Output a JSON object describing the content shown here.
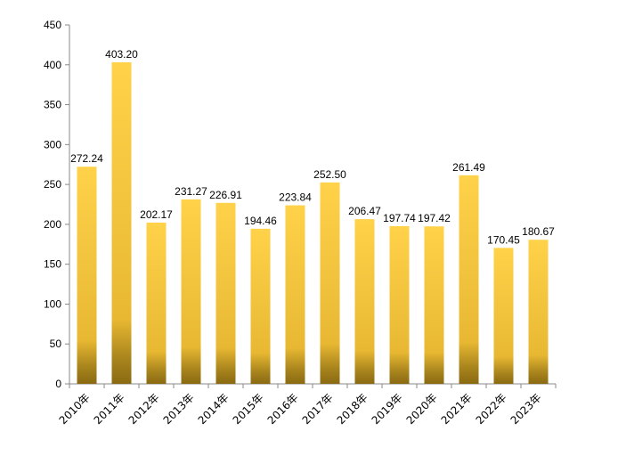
{
  "chart_data": {
    "type": "bar",
    "categories": [
      "2010年",
      "2011年",
      "2012年",
      "2013年",
      "2014年",
      "2015年",
      "2016年",
      "2017年",
      "2018年",
      "2019年",
      "2020年",
      "2021年",
      "2022年",
      "2023年"
    ],
    "values": [
      272.24,
      403.2,
      202.17,
      231.27,
      226.91,
      194.46,
      223.84,
      252.5,
      206.47,
      197.74,
      197.42,
      261.49,
      170.45,
      180.67
    ],
    "data_labels": [
      "272.24",
      "403.20",
      "202.17",
      "231.27",
      "226.91",
      "194.46",
      "223.84",
      "252.50",
      "206.47",
      "197.74",
      "197.42",
      "261.49",
      "170.45",
      "180.67"
    ],
    "ylim": [
      0,
      450
    ],
    "yticks": [
      "0",
      "50",
      "100",
      "150",
      "200",
      "250",
      "300",
      "350",
      "400",
      "450"
    ],
    "grid": false,
    "legend": "none",
    "colors": {
      "bar_top": "#FFD24A",
      "bar_mid": "#E8B832",
      "bar_bottom": "#8A6A12",
      "axis": "#888888"
    }
  }
}
